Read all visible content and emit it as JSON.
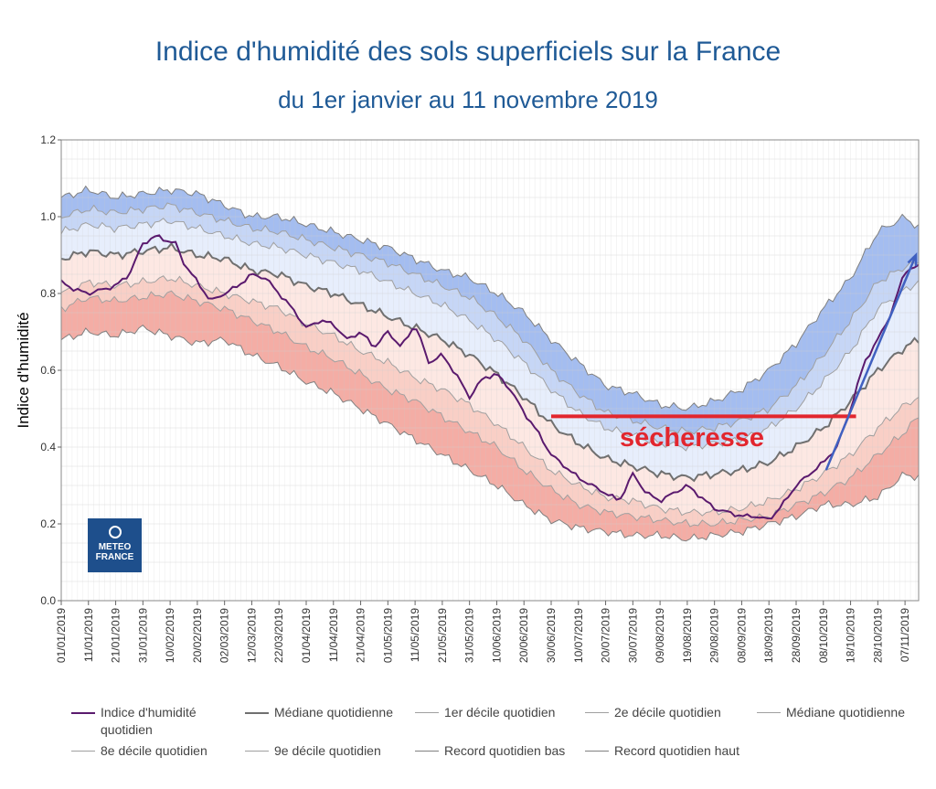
{
  "chart_data": {
    "type": "line",
    "title": "Indice d'humidité des sols superficiels sur la France",
    "subtitle": "du 1er janvier au 11 novembre 2019",
    "ylabel": "Indice d'humidité",
    "xlabel": "",
    "ylim": [
      0,
      1.2
    ],
    "yticks": [
      "0.0",
      "0.2",
      "0.4",
      "0.6",
      "0.8",
      "1.0",
      "1.2"
    ],
    "grid": true,
    "x_day_range": [
      0,
      315
    ],
    "x_ticks": [
      {
        "day": 0,
        "label": "01/01/2019"
      },
      {
        "day": 10,
        "label": "11/01/2019"
      },
      {
        "day": 20,
        "label": "21/01/2019"
      },
      {
        "day": 30,
        "label": "31/01/2019"
      },
      {
        "day": 40,
        "label": "10/02/2019"
      },
      {
        "day": 50,
        "label": "20/02/2019"
      },
      {
        "day": 60,
        "label": "02/03/2019"
      },
      {
        "day": 70,
        "label": "12/03/2019"
      },
      {
        "day": 80,
        "label": "22/03/2019"
      },
      {
        "day": 90,
        "label": "01/04/2019"
      },
      {
        "day": 100,
        "label": "11/04/2019"
      },
      {
        "day": 110,
        "label": "21/04/2019"
      },
      {
        "day": 120,
        "label": "01/05/2019"
      },
      {
        "day": 130,
        "label": "11/05/2019"
      },
      {
        "day": 140,
        "label": "21/05/2019"
      },
      {
        "day": 150,
        "label": "31/05/2019"
      },
      {
        "day": 160,
        "label": "10/06/2019"
      },
      {
        "day": 170,
        "label": "20/06/2019"
      },
      {
        "day": 180,
        "label": "30/06/2019"
      },
      {
        "day": 190,
        "label": "10/07/2019"
      },
      {
        "day": 200,
        "label": "20/07/2019"
      },
      {
        "day": 210,
        "label": "30/07/2019"
      },
      {
        "day": 220,
        "label": "09/08/2019"
      },
      {
        "day": 230,
        "label": "19/08/2019"
      },
      {
        "day": 240,
        "label": "29/08/2019"
      },
      {
        "day": 250,
        "label": "08/09/2019"
      },
      {
        "day": 260,
        "label": "18/09/2019"
      },
      {
        "day": 270,
        "label": "28/09/2019"
      },
      {
        "day": 280,
        "label": "08/10/2019"
      },
      {
        "day": 290,
        "label": "18/10/2019"
      },
      {
        "day": 300,
        "label": "28/10/2019"
      },
      {
        "day": 310,
        "label": "07/11/2019"
      }
    ],
    "climatology_days": [
      0,
      10,
      20,
      30,
      40,
      50,
      60,
      70,
      80,
      90,
      100,
      110,
      120,
      130,
      140,
      150,
      160,
      170,
      180,
      190,
      200,
      210,
      220,
      230,
      240,
      250,
      260,
      270,
      280,
      290,
      300,
      310,
      315
    ],
    "series": [
      {
        "name": "Record quotidien haut",
        "color": "#808080",
        "values": [
          1.05,
          1.07,
          1.05,
          1.06,
          1.07,
          1.06,
          1.03,
          1.0,
          1.0,
          0.98,
          0.96,
          0.94,
          0.92,
          0.89,
          0.86,
          0.84,
          0.8,
          0.75,
          0.68,
          0.62,
          0.56,
          0.54,
          0.51,
          0.5,
          0.52,
          0.55,
          0.6,
          0.67,
          0.76,
          0.84,
          0.96,
          1.0,
          0.97
        ]
      },
      {
        "name": "9e décile quotidien",
        "color": "#a0a0a0",
        "values": [
          1.0,
          1.02,
          1.01,
          1.02,
          1.03,
          1.01,
          0.99,
          0.97,
          0.96,
          0.94,
          0.92,
          0.9,
          0.88,
          0.85,
          0.82,
          0.79,
          0.74,
          0.68,
          0.6,
          0.54,
          0.49,
          0.47,
          0.45,
          0.44,
          0.45,
          0.47,
          0.5,
          0.56,
          0.64,
          0.73,
          0.83,
          0.87,
          0.88
        ]
      },
      {
        "name": "8e décile quotidien",
        "color": "#a0a0a0",
        "values": [
          0.96,
          0.98,
          0.97,
          0.98,
          0.99,
          0.97,
          0.95,
          0.93,
          0.92,
          0.9,
          0.88,
          0.86,
          0.83,
          0.8,
          0.77,
          0.73,
          0.68,
          0.62,
          0.55,
          0.49,
          0.45,
          0.43,
          0.41,
          0.4,
          0.41,
          0.42,
          0.45,
          0.5,
          0.57,
          0.65,
          0.76,
          0.81,
          0.83
        ]
      },
      {
        "name": "Médiane quotidienne",
        "color": "#707070",
        "values": [
          0.89,
          0.91,
          0.9,
          0.91,
          0.92,
          0.9,
          0.89,
          0.86,
          0.85,
          0.82,
          0.8,
          0.77,
          0.74,
          0.71,
          0.68,
          0.64,
          0.59,
          0.53,
          0.46,
          0.41,
          0.37,
          0.35,
          0.33,
          0.32,
          0.33,
          0.34,
          0.36,
          0.4,
          0.45,
          0.52,
          0.6,
          0.66,
          0.68
        ]
      },
      {
        "name": "2e décile quotidien",
        "color": "#a0a0a0",
        "values": [
          0.8,
          0.83,
          0.82,
          0.83,
          0.84,
          0.82,
          0.8,
          0.78,
          0.76,
          0.72,
          0.69,
          0.65,
          0.62,
          0.58,
          0.55,
          0.51,
          0.46,
          0.4,
          0.34,
          0.3,
          0.27,
          0.26,
          0.24,
          0.23,
          0.23,
          0.24,
          0.26,
          0.29,
          0.33,
          0.38,
          0.45,
          0.51,
          0.53
        ]
      },
      {
        "name": "1er décile quotidien",
        "color": "#a0a0a0",
        "values": [
          0.76,
          0.79,
          0.78,
          0.79,
          0.8,
          0.78,
          0.76,
          0.73,
          0.7,
          0.66,
          0.63,
          0.59,
          0.55,
          0.52,
          0.48,
          0.44,
          0.4,
          0.34,
          0.29,
          0.25,
          0.23,
          0.22,
          0.21,
          0.2,
          0.2,
          0.21,
          0.22,
          0.25,
          0.28,
          0.32,
          0.38,
          0.44,
          0.48
        ]
      },
      {
        "name": "Record quotidien bas",
        "color": "#808080",
        "values": [
          0.68,
          0.7,
          0.69,
          0.71,
          0.69,
          0.67,
          0.68,
          0.64,
          0.61,
          0.57,
          0.54,
          0.5,
          0.46,
          0.42,
          0.38,
          0.34,
          0.3,
          0.25,
          0.21,
          0.19,
          0.18,
          0.17,
          0.17,
          0.16,
          0.17,
          0.18,
          0.2,
          0.22,
          0.25,
          0.25,
          0.27,
          0.33,
          0.32
        ]
      },
      {
        "name": "Indice d'humidité quotidien",
        "color": "#5a1a6e",
        "days": [
          0,
          5,
          10,
          15,
          20,
          25,
          30,
          35,
          38,
          42,
          45,
          50,
          55,
          60,
          65,
          70,
          75,
          80,
          85,
          90,
          95,
          100,
          105,
          110,
          115,
          120,
          125,
          130,
          135,
          140,
          145,
          150,
          155,
          160,
          165,
          170,
          175,
          180,
          185,
          190,
          195,
          200,
          205,
          210,
          215,
          220,
          225,
          230,
          235,
          240,
          245,
          250,
          255,
          260,
          265,
          270,
          275,
          280,
          285,
          290,
          295,
          300,
          305,
          310,
          315
        ],
        "values": [
          0.83,
          0.81,
          0.8,
          0.81,
          0.82,
          0.85,
          0.93,
          0.95,
          0.94,
          0.93,
          0.88,
          0.83,
          0.78,
          0.8,
          0.82,
          0.85,
          0.84,
          0.8,
          0.76,
          0.71,
          0.73,
          0.72,
          0.68,
          0.7,
          0.66,
          0.7,
          0.66,
          0.72,
          0.62,
          0.64,
          0.59,
          0.53,
          0.58,
          0.59,
          0.55,
          0.49,
          0.44,
          0.38,
          0.35,
          0.32,
          0.3,
          0.28,
          0.26,
          0.33,
          0.28,
          0.26,
          0.28,
          0.3,
          0.27,
          0.24,
          0.23,
          0.22,
          0.22,
          0.21,
          0.25,
          0.3,
          0.33,
          0.36,
          0.4,
          0.5,
          0.62,
          0.68,
          0.75,
          0.86,
          0.87
        ]
      }
    ],
    "annotations": [
      {
        "text": "sécheresse",
        "color": "#e2262e",
        "line_y": 0.48,
        "line_day_range": [
          180,
          292
        ]
      }
    ],
    "arrow": {
      "color": "#4060c0",
      "from": {
        "day": 281,
        "y": 0.34
      },
      "to": {
        "day": 314,
        "y": 0.9
      }
    },
    "band_colors": {
      "record_high_to_d9": "#a4bdf0",
      "d9_to_d8": "#c6d6f6",
      "d8_to_median": "#e7eefc",
      "median_to_d2": "#fde8e3",
      "d2_to_d1": "#f9cfc6",
      "d1_to_record_low": "#f4ada5"
    }
  },
  "legend": [
    {
      "label": "Indice d'humidité quotidien",
      "color": "#5a1a6e",
      "width": 2
    },
    {
      "label": "Médiane quotidienne",
      "color": "#707070",
      "width": 2
    },
    {
      "label": "1er décile quotidien",
      "color": "#a0a0a0",
      "width": 1
    },
    {
      "label": "2e décile quotidien",
      "color": "#a0a0a0",
      "width": 1
    },
    {
      "label": "Médiane quotidienne",
      "color": "#a0a0a0",
      "width": 1
    },
    {
      "label": "8e décile quotidien",
      "color": "#a0a0a0",
      "width": 1
    },
    {
      "label": "9e décile quotidien",
      "color": "#a0a0a0",
      "width": 1
    },
    {
      "label": "Record quotidien bas",
      "color": "#808080",
      "width": 1
    },
    {
      "label": "Record quotidien haut",
      "color": "#808080",
      "width": 1
    }
  ],
  "logo": {
    "line1": "METEO",
    "line2": "FRANCE"
  }
}
